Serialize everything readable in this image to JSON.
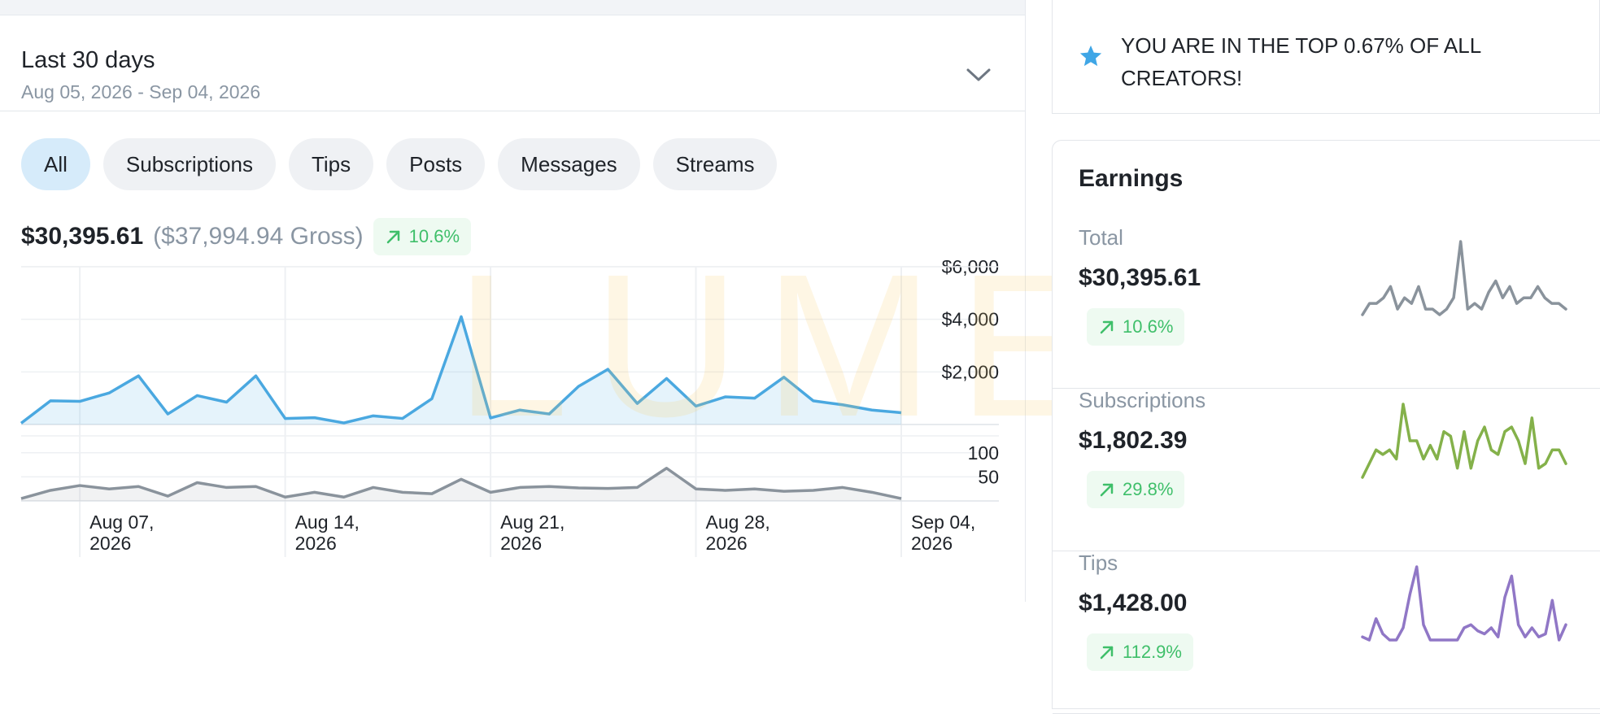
{
  "date_range": {
    "title": "Last 30 days",
    "dates": "Aug 05, 2026 - Sep 04, 2026"
  },
  "filters": [
    "All",
    "Subscriptions",
    "Tips",
    "Posts",
    "Messages",
    "Streams"
  ],
  "active_filter": "All",
  "summary": {
    "net": "$30,395.61",
    "gross": "($37,994.94 Gross)",
    "change": "10.6%"
  },
  "watermark": "LUMEN",
  "rank_banner": "YOU ARE IN THE TOP 0.67% OF ALL CREATORS!",
  "earnings": {
    "title": "Earnings",
    "stats": [
      {
        "label": "Total",
        "value": "$30,395.61",
        "change": "10.6%",
        "color": "#8a939c",
        "spark": [
          5,
          7,
          7,
          8,
          10,
          6,
          8,
          7,
          10,
          6,
          6,
          5,
          6,
          8,
          18,
          6,
          7,
          6,
          9,
          11,
          8,
          10,
          7,
          8,
          8,
          10,
          8,
          7,
          7,
          6
        ]
      },
      {
        "label": "Subscriptions",
        "value": "$1,802.39",
        "change": "29.8%",
        "color": "#84b14a",
        "spark": [
          4,
          7,
          10,
          9,
          10,
          8,
          20,
          12,
          12,
          8,
          11,
          8,
          14,
          13,
          6,
          14,
          6,
          12,
          15,
          10,
          9,
          14,
          15,
          12,
          7,
          17,
          6,
          7,
          10,
          10,
          7
        ]
      },
      {
        "label": "Tips",
        "value": "$1,428.00",
        "change": "112.9%",
        "color": "#9077c6",
        "spark": [
          2,
          1,
          8,
          3,
          1,
          1,
          5,
          16,
          25,
          6,
          1,
          1,
          1,
          1,
          1,
          5,
          6,
          4,
          3,
          5,
          2,
          15,
          22,
          6,
          2,
          5,
          2,
          3,
          14,
          1,
          6
        ]
      }
    ]
  },
  "chart_data": [
    {
      "type": "area",
      "title": "",
      "xlabel": "",
      "ylabel": "",
      "x_ticks": [
        "Aug 07, 2026",
        "Aug 14, 2026",
        "Aug 21, 2026",
        "Aug 28, 2026",
        "Sep 04, 2026"
      ],
      "y_ticks": [
        "$6,000",
        "$4,000",
        "$2,000"
      ],
      "ylim": [
        0,
        6000
      ],
      "x": [
        "Aug 05",
        "Aug 06",
        "Aug 07",
        "Aug 08",
        "Aug 09",
        "Aug 10",
        "Aug 11",
        "Aug 12",
        "Aug 13",
        "Aug 14",
        "Aug 15",
        "Aug 16",
        "Aug 17",
        "Aug 18",
        "Aug 19",
        "Aug 20",
        "Aug 21",
        "Aug 22",
        "Aug 23",
        "Aug 24",
        "Aug 25",
        "Aug 26",
        "Aug 27",
        "Aug 28",
        "Aug 29",
        "Aug 30",
        "Aug 31",
        "Sep 01",
        "Sep 02",
        "Sep 03",
        "Sep 04"
      ],
      "series": [
        {
          "color": "#4aa8e0",
          "values": [
            50,
            900,
            880,
            1200,
            1850,
            400,
            1100,
            850,
            1850,
            230,
            260,
            60,
            330,
            230,
            980,
            4100,
            250,
            550,
            400,
            1450,
            2100,
            800,
            1750,
            700,
            1050,
            1000,
            1800,
            900,
            750,
            550,
            450
          ]
        }
      ],
      "grid": true
    },
    {
      "type": "area",
      "title": "",
      "y_ticks": [
        "100",
        "50"
      ],
      "ylim": [
        0,
        125
      ],
      "x": [
        "Aug 05",
        "Aug 06",
        "Aug 07",
        "Aug 08",
        "Aug 09",
        "Aug 10",
        "Aug 11",
        "Aug 12",
        "Aug 13",
        "Aug 14",
        "Aug 15",
        "Aug 16",
        "Aug 17",
        "Aug 18",
        "Aug 19",
        "Aug 20",
        "Aug 21",
        "Aug 22",
        "Aug 23",
        "Aug 24",
        "Aug 25",
        "Aug 26",
        "Aug 27",
        "Aug 28",
        "Aug 29",
        "Aug 30",
        "Aug 31",
        "Sep 01",
        "Sep 02",
        "Sep 03",
        "Sep 04"
      ],
      "series": [
        {
          "color": "#8a939c",
          "values": [
            5,
            22,
            32,
            25,
            30,
            10,
            38,
            28,
            30,
            8,
            18,
            8,
            28,
            18,
            15,
            45,
            18,
            28,
            30,
            27,
            26,
            28,
            68,
            25,
            22,
            25,
            20,
            22,
            28,
            18,
            5
          ]
        }
      ],
      "grid": true
    }
  ]
}
